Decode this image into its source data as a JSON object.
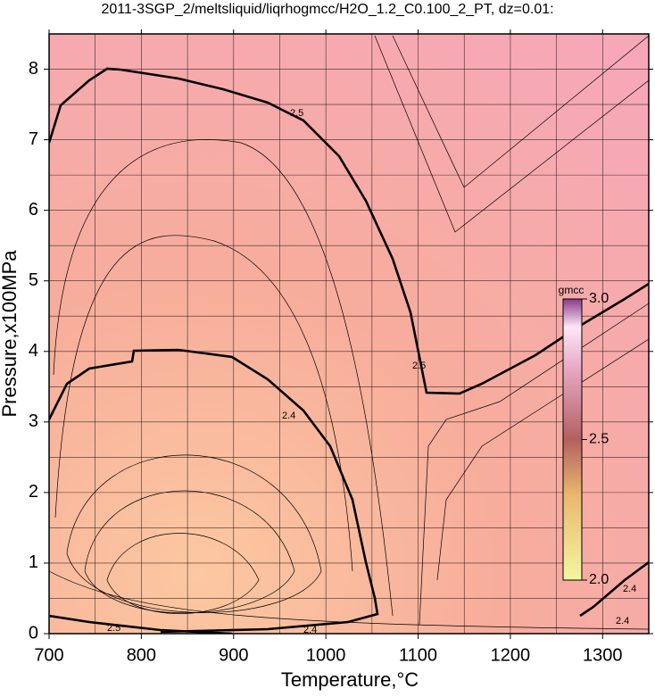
{
  "chart_data": {
    "type": "contour",
    "title": "2011-3SGP_2/meltsliquid/liqrhogmcc/H2O_1.2_C0.100_2_PT, dz=0.01:",
    "x_label": "Temperature,°C",
    "y_label": "Pressure,x100MPa",
    "xlim": [
      700,
      1350
    ],
    "ylim": [
      0,
      8.5
    ],
    "xticks": [
      700,
      800,
      900,
      1000,
      1100,
      1200,
      1300
    ],
    "yticks": [
      0,
      1,
      2,
      3,
      4,
      5,
      6,
      7,
      8
    ],
    "xgrid": [
      750,
      800,
      850,
      900,
      950,
      1000,
      1050,
      1100,
      1150,
      1200,
      1250,
      1300
    ],
    "ygrid": [
      0.5,
      1,
      1.5,
      2,
      2.5,
      3,
      3.5,
      4,
      4.5,
      5,
      5.5,
      6,
      6.5,
      7,
      7.5,
      8
    ],
    "contour_labels": [
      2.5,
      2.5,
      2.4,
      2.4,
      2.5,
      2.4,
      2.4
    ],
    "colorbar": {
      "title": "gmcc",
      "lim": [
        2,
        3
      ],
      "ticks": [
        {
          "value": 2,
          "label": "2.0"
        },
        {
          "value": 2.5,
          "label": "2.5"
        },
        {
          "value": 3,
          "label": "3.0"
        }
      ]
    }
  }
}
